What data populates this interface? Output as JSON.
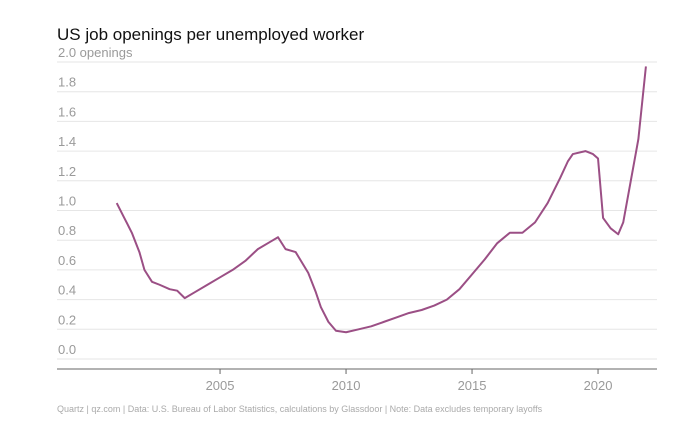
{
  "chart_data": {
    "type": "line",
    "title": "US job openings per unemployed worker",
    "footer": "Quartz | qz.com | Data: U.S. Bureau of Labor Statistics, calculations by Glassdoor | Note: Data excludes temporary layoffs",
    "x": [
      2000.9,
      2001.2,
      2001.5,
      2001.8,
      2002.0,
      2002.3,
      2002.6,
      2003.0,
      2003.3,
      2003.6,
      2004.0,
      2004.5,
      2005.0,
      2005.5,
      2006.0,
      2006.5,
      2007.0,
      2007.3,
      2007.6,
      2008.0,
      2008.5,
      2008.8,
      2009.0,
      2009.3,
      2009.6,
      2010.0,
      2010.5,
      2011.0,
      2011.5,
      2012.0,
      2012.5,
      2013.0,
      2013.5,
      2014.0,
      2014.5,
      2015.0,
      2015.5,
      2016.0,
      2016.5,
      2017.0,
      2017.5,
      2018.0,
      2018.5,
      2018.8,
      2019.0,
      2019.5,
      2019.8,
      2020.0,
      2020.2,
      2020.5,
      2020.8,
      2021.0,
      2021.3,
      2021.6,
      2021.9
    ],
    "series": [
      {
        "name": "Openings per unemployed worker",
        "color": "#9b4f85",
        "values": [
          1.05,
          0.95,
          0.85,
          0.72,
          0.6,
          0.52,
          0.5,
          0.47,
          0.46,
          0.41,
          0.45,
          0.5,
          0.55,
          0.6,
          0.66,
          0.74,
          0.79,
          0.82,
          0.74,
          0.72,
          0.58,
          0.45,
          0.35,
          0.25,
          0.19,
          0.18,
          0.2,
          0.22,
          0.25,
          0.28,
          0.31,
          0.33,
          0.36,
          0.4,
          0.47,
          0.57,
          0.67,
          0.78,
          0.85,
          0.85,
          0.92,
          1.05,
          1.22,
          1.33,
          1.38,
          1.4,
          1.38,
          1.35,
          0.95,
          0.88,
          0.84,
          0.92,
          1.2,
          1.48,
          1.97
        ]
      }
    ],
    "xlim": [
      1998.53,
      2022.34
    ],
    "xticks": [
      2005,
      2010,
      2015,
      2020
    ],
    "ylim": [
      0,
      2
    ],
    "yticks": [
      {
        "value": 0,
        "label": "0.0"
      },
      0.2,
      0.4,
      0.6,
      0.8,
      {
        "value": 1,
        "label": "1.0"
      },
      1.2,
      1.4,
      1.6,
      1.8,
      {
        "value": 2,
        "label": "2.0 openings"
      }
    ],
    "grid": true
  }
}
